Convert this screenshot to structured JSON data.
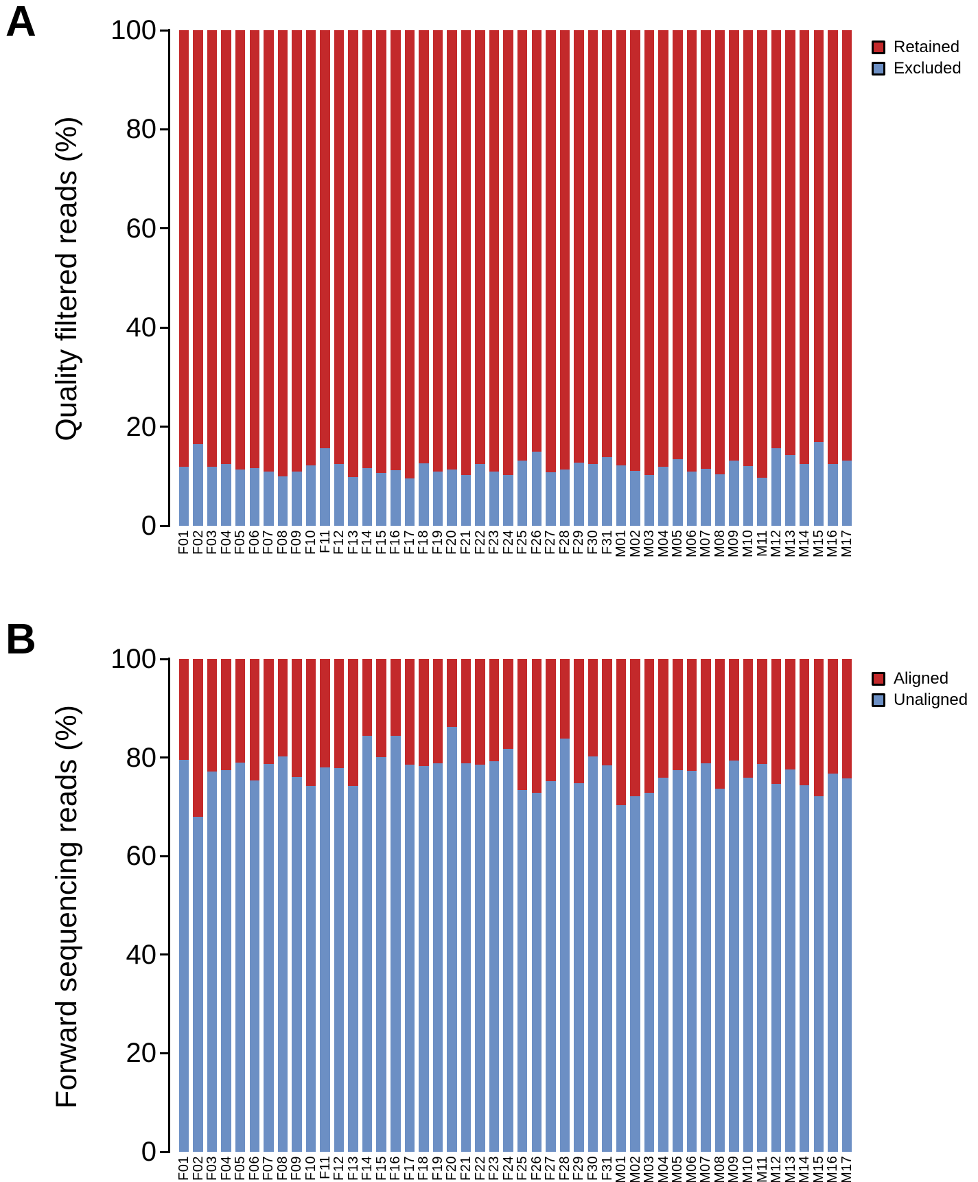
{
  "figure": {
    "panels": [
      {
        "label": "A"
      },
      {
        "label": "B"
      }
    ]
  },
  "colors": {
    "retained_red": "#c3292b",
    "excluded_blue": "#6c8fc4",
    "axis_black": "#000000"
  },
  "chart_data": [
    {
      "type": "bar",
      "stacked": true,
      "title": "",
      "ylabel": "Quality filtered reads (%)",
      "xlabel": "",
      "ylim": [
        0,
        100
      ],
      "yticks": [
        0,
        20,
        40,
        60,
        80,
        100
      ],
      "grid": false,
      "legend_position": "right-top",
      "categories": [
        "F01",
        "F02",
        "F03",
        "F04",
        "F05",
        "F06",
        "F07",
        "F08",
        "F09",
        "F10",
        "F11",
        "F12",
        "F13",
        "F14",
        "F15",
        "F16",
        "F17",
        "F18",
        "F19",
        "F20",
        "F21",
        "F22",
        "F23",
        "F24",
        "F25",
        "F26",
        "F27",
        "F28",
        "F29",
        "F30",
        "F31",
        "M01",
        "M02",
        "M03",
        "M04",
        "M05",
        "M06",
        "M07",
        "M08",
        "M09",
        "M10",
        "M11",
        "M12",
        "M13",
        "M14",
        "M15",
        "M16",
        "M17"
      ],
      "series": [
        {
          "name": "Retained",
          "color": "#c3292b",
          "position": "top",
          "values": [
            88.1,
            83.5,
            88.1,
            87.5,
            88.7,
            88.3,
            89.1,
            90.0,
            89.1,
            87.8,
            84.4,
            87.6,
            90.1,
            88.3,
            89.4,
            88.8,
            90.4,
            87.4,
            89.1,
            88.6,
            89.8,
            87.6,
            89.0,
            89.7,
            86.8,
            85.1,
            89.2,
            88.6,
            87.3,
            87.5,
            86.1,
            87.8,
            88.9,
            89.7,
            88.1,
            86.6,
            89.0,
            88.5,
            89.6,
            86.9,
            88.0,
            90.3,
            84.4,
            85.8,
            87.6,
            83.1,
            87.5,
            86.8
          ]
        },
        {
          "name": "Excluded",
          "color": "#6c8fc4",
          "position": "bottom",
          "values": [
            11.9,
            16.5,
            11.9,
            12.5,
            11.3,
            11.7,
            10.9,
            10.0,
            10.9,
            12.2,
            15.6,
            12.4,
            9.9,
            11.7,
            10.6,
            11.2,
            9.6,
            12.6,
            10.9,
            11.4,
            10.2,
            12.4,
            11.0,
            10.3,
            13.2,
            14.9,
            10.8,
            11.4,
            12.7,
            12.5,
            13.9,
            12.2,
            11.1,
            10.3,
            11.9,
            13.4,
            11.0,
            11.5,
            10.4,
            13.1,
            12.0,
            9.7,
            15.6,
            14.2,
            12.4,
            16.9,
            12.5,
            13.2
          ]
        }
      ]
    },
    {
      "type": "bar",
      "stacked": true,
      "title": "",
      "ylabel": "Forward sequencing reads (%)",
      "xlabel": "",
      "ylim": [
        0,
        100
      ],
      "yticks": [
        0,
        20,
        40,
        60,
        80,
        100
      ],
      "grid": false,
      "legend_position": "right-top",
      "categories": [
        "F01",
        "F02",
        "F03",
        "F04",
        "F05",
        "F06",
        "F07",
        "F08",
        "F09",
        "F10",
        "F11",
        "F12",
        "F13",
        "F14",
        "F15",
        "F16",
        "F17",
        "F18",
        "F19",
        "F20",
        "F21",
        "F22",
        "F23",
        "F24",
        "F25",
        "F26",
        "F27",
        "F28",
        "F29",
        "F30",
        "F31",
        "M01",
        "M02",
        "M03",
        "M04",
        "M05",
        "M06",
        "M07",
        "M08",
        "M09",
        "M10",
        "M11",
        "M12",
        "M13",
        "M14",
        "M15",
        "M16",
        "M17"
      ],
      "series": [
        {
          "name": "Aligned",
          "color": "#c3292b",
          "position": "top",
          "values": [
            20.5,
            32.0,
            22.8,
            22.6,
            21.1,
            24.6,
            21.3,
            19.8,
            24.0,
            25.8,
            22.0,
            22.1,
            25.7,
            15.6,
            19.9,
            15.6,
            21.5,
            21.7,
            21.2,
            13.8,
            21.2,
            21.4,
            20.7,
            18.2,
            26.6,
            27.2,
            24.8,
            16.1,
            25.2,
            19.8,
            21.6,
            29.7,
            27.8,
            27.1,
            24.1,
            22.6,
            22.7,
            21.2,
            26.3,
            20.6,
            24.1,
            21.3,
            25.4,
            22.4,
            25.6,
            27.9,
            23.2,
            24.2
          ]
        },
        {
          "name": "Unaligned",
          "color": "#6c8fc4",
          "position": "bottom",
          "values": [
            79.5,
            68.0,
            77.2,
            77.4,
            78.9,
            75.4,
            78.7,
            80.2,
            76.0,
            74.2,
            78.0,
            77.9,
            74.3,
            84.4,
            80.1,
            84.4,
            78.5,
            78.3,
            78.8,
            86.2,
            78.8,
            78.6,
            79.3,
            81.8,
            73.4,
            72.8,
            75.2,
            83.9,
            74.8,
            80.2,
            78.4,
            70.3,
            72.2,
            72.9,
            75.9,
            77.4,
            77.3,
            78.8,
            73.7,
            79.4,
            75.9,
            78.7,
            74.6,
            77.6,
            74.4,
            72.1,
            76.8,
            75.8
          ]
        }
      ]
    }
  ]
}
